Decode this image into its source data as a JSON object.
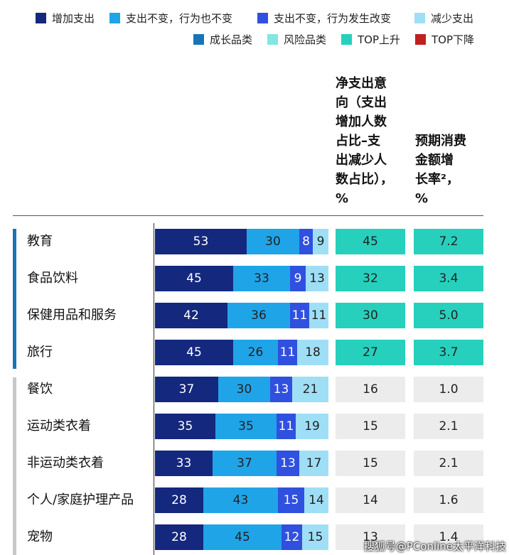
{
  "colors": {
    "increase": "#14287e",
    "unchanged_same": "#20a4e8",
    "unchanged_changed": "#3050e0",
    "decrease": "#9fdff6",
    "growth_category": "#1874b8",
    "risk_category": "#82e6e2",
    "top_rise": "#26d0bc",
    "top_fall": "#c02020",
    "neutral_cell": "#ececec"
  },
  "legend": [
    {
      "label": "增加支出",
      "color": "#14287e"
    },
    {
      "label": "支出不变，行为也不变",
      "color": "#20a4e8"
    },
    {
      "label": "支出不变，行为发生改变",
      "color": "#3050e0"
    },
    {
      "label": "减少支出",
      "color": "#9fdff6"
    },
    {
      "label": "成长品类",
      "color": "#1874b8"
    },
    {
      "label": "风险品类",
      "color": "#82e6e2"
    },
    {
      "label": "TOP上升",
      "color": "#26d0bc"
    },
    {
      "label": "TOP下降",
      "color": "#c02020"
    }
  ],
  "headers": {
    "net_intent": [
      "净支出意",
      "向（支出",
      "增加人数",
      "占比–支",
      "出减少人",
      "数占比），",
      "%"
    ],
    "growth": [
      "预期消费",
      "金额增",
      "长率²，",
      "%"
    ]
  },
  "watermark": "搜狐号@PConline太平洋科技",
  "chart_data": {
    "type": "bar",
    "stacked": true,
    "orientation": "horizontal",
    "categories": [
      "教育",
      "食品饮料",
      "保健用品和服务",
      "旅行",
      "餐饮",
      "运动类衣着",
      "非运动类衣着",
      "个人/家庭护理产品",
      "宠物"
    ],
    "series": [
      {
        "name": "增加支出",
        "values": [
          53,
          45,
          42,
          45,
          37,
          35,
          33,
          28,
          28
        ]
      },
      {
        "name": "支出不变，行为也不变",
        "values": [
          30,
          33,
          36,
          26,
          30,
          35,
          37,
          43,
          45
        ]
      },
      {
        "name": "支出不变，行为发生改变",
        "values": [
          8,
          9,
          11,
          11,
          13,
          11,
          13,
          15,
          12
        ]
      },
      {
        "name": "减少支出",
        "values": [
          9,
          13,
          11,
          18,
          21,
          19,
          17,
          14,
          15
        ]
      }
    ],
    "xlim": [
      0,
      100
    ],
    "net_intent": [
      "45",
      "32",
      "30",
      "27",
      "16",
      "15",
      "15",
      "14",
      "13"
    ],
    "growth_rate": [
      "7.2",
      "3.4",
      "5.0",
      "3.7",
      "1.0",
      "2.1",
      "2.1",
      "1.6",
      "1.4"
    ],
    "category_group": [
      "成长品类",
      "成长品类",
      "成长品类",
      "成长品类",
      "",
      "",
      "",
      "",
      ""
    ],
    "highlight": [
      "TOP上升",
      "TOP上升",
      "TOP上升",
      "TOP上升",
      "",
      "",
      "",
      "",
      ""
    ]
  }
}
